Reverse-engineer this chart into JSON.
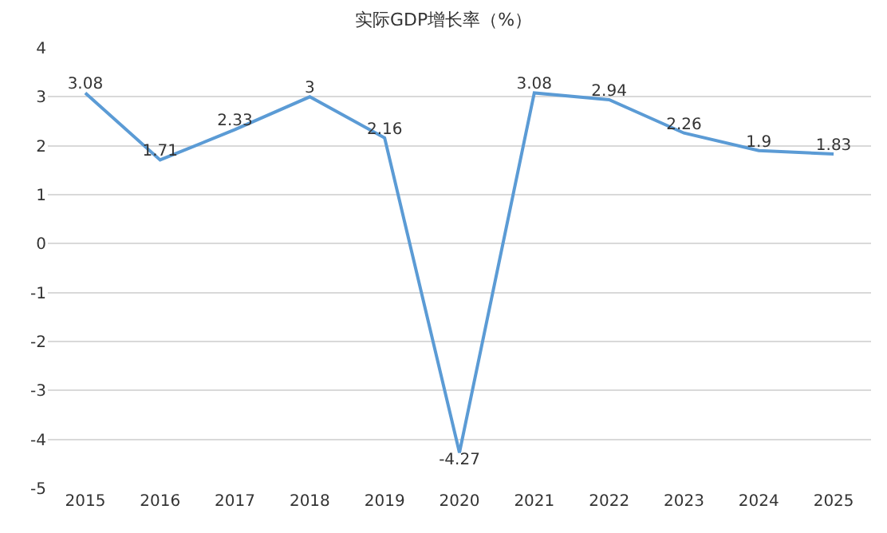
{
  "chart_data": {
    "type": "line",
    "title": "实际GDP增长率（%）",
    "categories": [
      "2015",
      "2016",
      "2017",
      "2018",
      "2019",
      "2020",
      "2021",
      "2022",
      "2023",
      "2024",
      "2025"
    ],
    "values": [
      3.08,
      1.71,
      2.33,
      3,
      2.16,
      -4.27,
      3.08,
      2.94,
      2.26,
      1.9,
      1.83
    ],
    "color": "#5b9bd5",
    "ylim": [
      -5,
      4
    ],
    "yticks": [
      -5,
      -4,
      -3,
      -2,
      -1,
      0,
      1,
      2,
      3,
      4
    ],
    "grid": "y",
    "data_labels": true,
    "marker": "none",
    "line_style": "solid"
  }
}
